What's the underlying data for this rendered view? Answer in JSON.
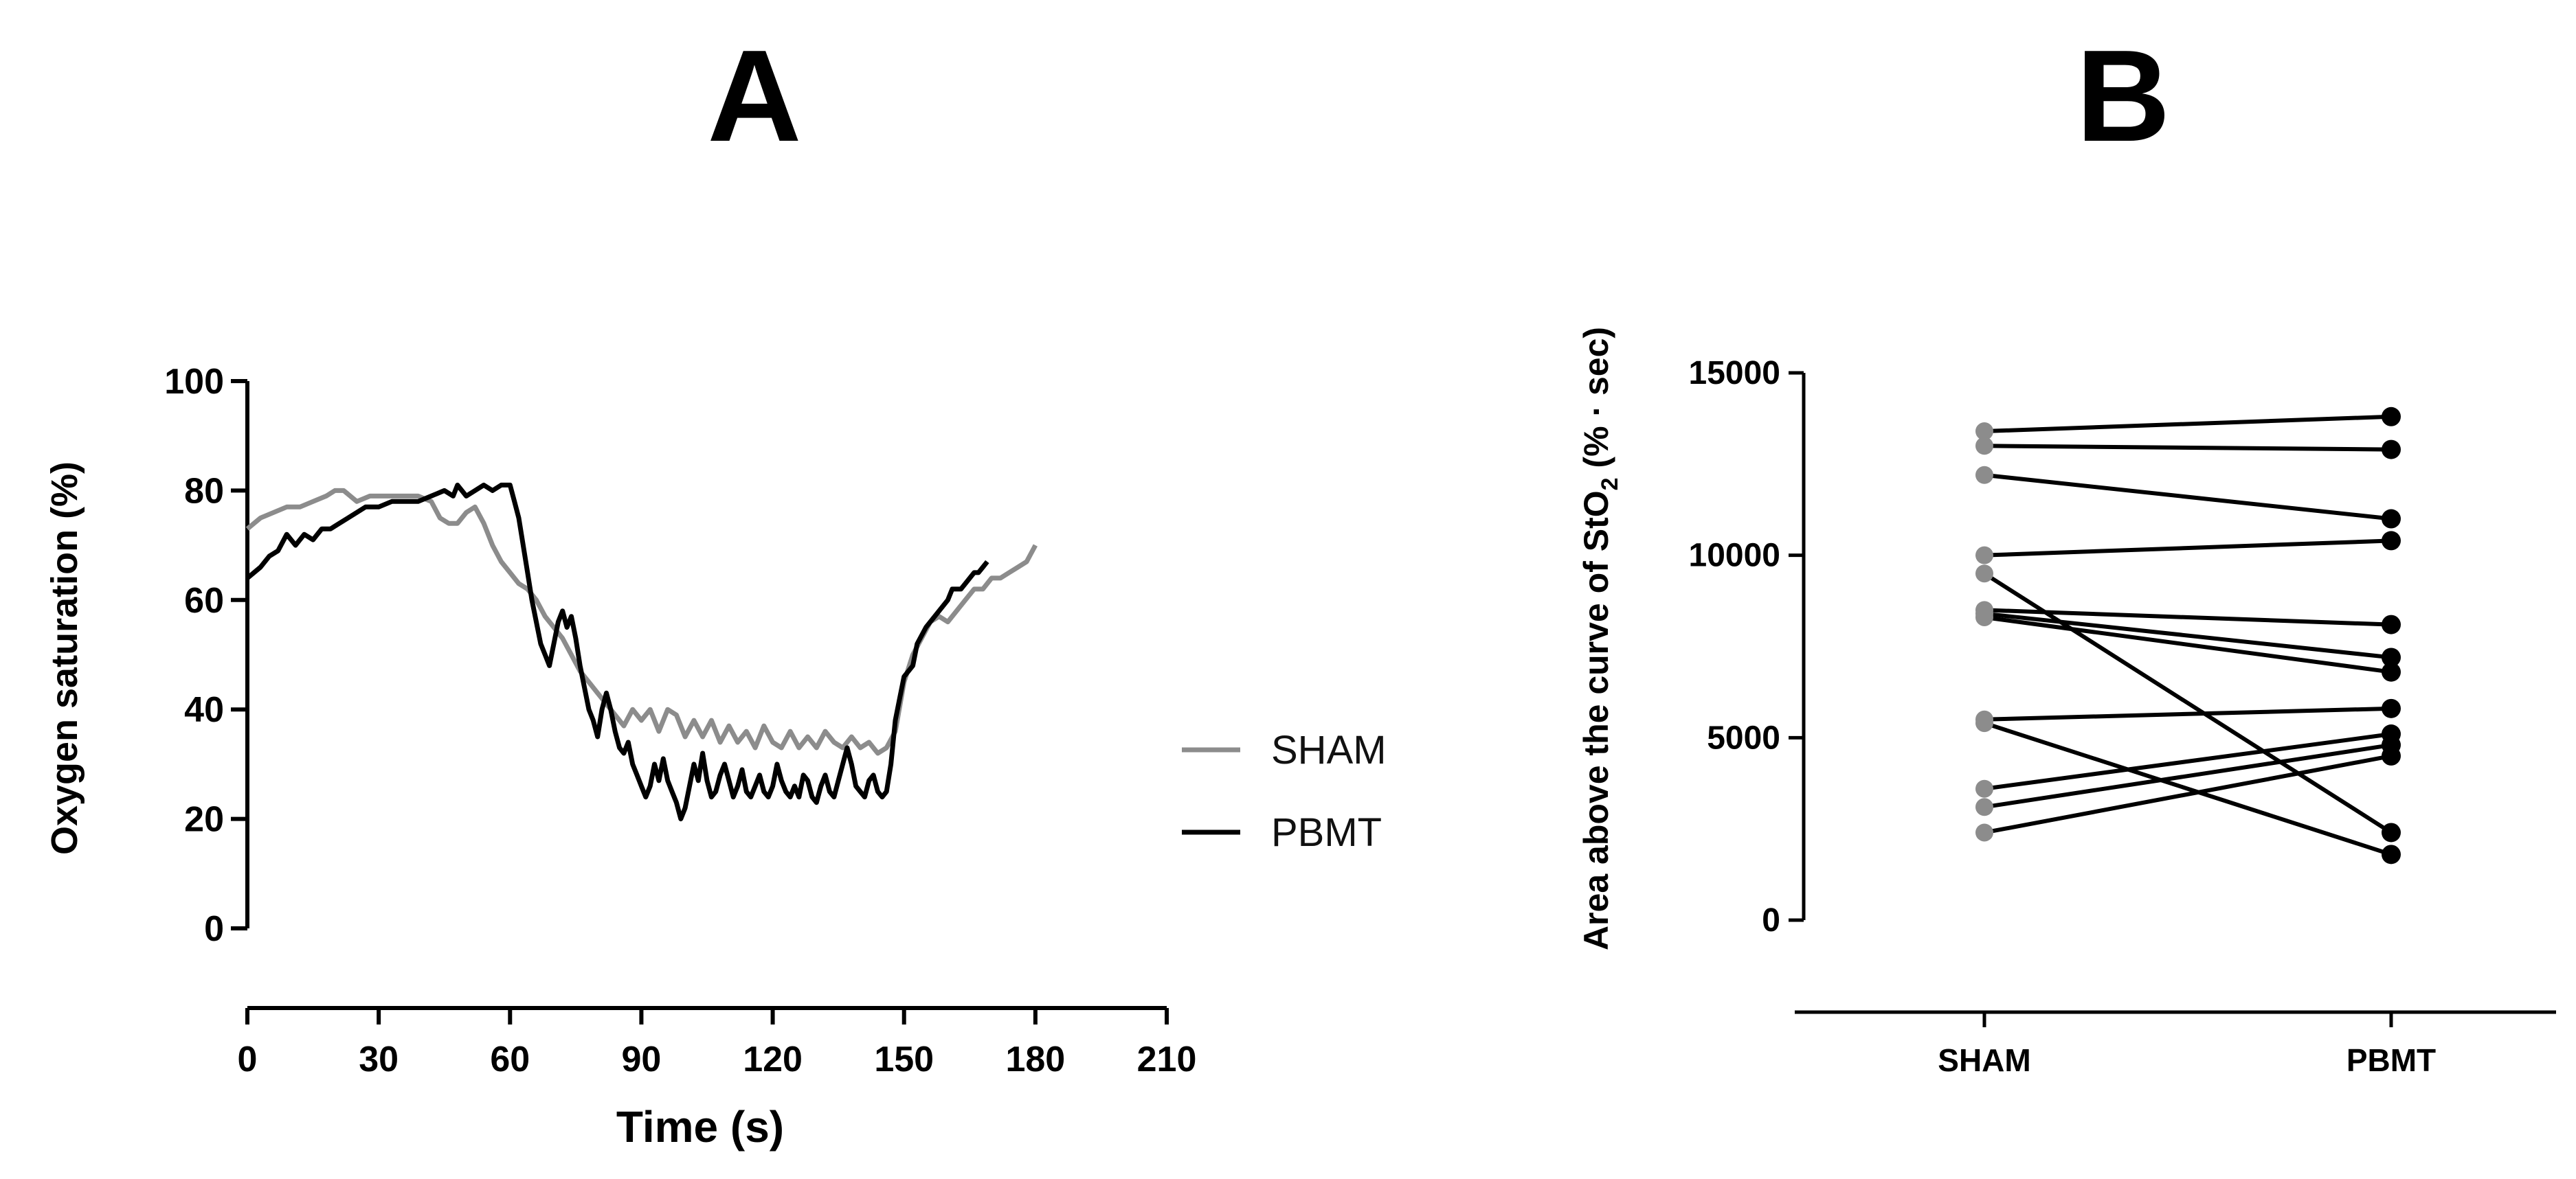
{
  "panels": [
    {
      "letter": "A"
    },
    {
      "letter": "B"
    }
  ],
  "chart_data": [
    {
      "type": "line",
      "panel": "A",
      "xlabel": "Time (s)",
      "ylabel": "Oxygen saturation (%)",
      "xlim": [
        0,
        210
      ],
      "ylim": [
        0,
        100
      ],
      "xticks": [
        0,
        30,
        60,
        90,
        120,
        150,
        180,
        210
      ],
      "yticks": [
        0,
        20,
        40,
        60,
        80,
        100
      ],
      "grid": false,
      "legend_position": "right",
      "series": [
        {
          "name": "SHAM",
          "color": "#8c8c8c",
          "points": [
            [
              0,
              73
            ],
            [
              3,
              75
            ],
            [
              6,
              76
            ],
            [
              9,
              77
            ],
            [
              12,
              77
            ],
            [
              15,
              78
            ],
            [
              18,
              79
            ],
            [
              20,
              80
            ],
            [
              22,
              80
            ],
            [
              25,
              78
            ],
            [
              28,
              79
            ],
            [
              31,
              79
            ],
            [
              35,
              79
            ],
            [
              39,
              79
            ],
            [
              42,
              78
            ],
            [
              44,
              75
            ],
            [
              46,
              74
            ],
            [
              48,
              74
            ],
            [
              50,
              76
            ],
            [
              52,
              77
            ],
            [
              54,
              74
            ],
            [
              56,
              70
            ],
            [
              58,
              67
            ],
            [
              60,
              65
            ],
            [
              62,
              63
            ],
            [
              64,
              62
            ],
            [
              66,
              60
            ],
            [
              68,
              57
            ],
            [
              70,
              55
            ],
            [
              72,
              53
            ],
            [
              74,
              50
            ],
            [
              76,
              47
            ],
            [
              78,
              45
            ],
            [
              80,
              43
            ],
            [
              82,
              41
            ],
            [
              84,
              39
            ],
            [
              86,
              37
            ],
            [
              88,
              40
            ],
            [
              90,
              38
            ],
            [
              92,
              40
            ],
            [
              94,
              36
            ],
            [
              96,
              40
            ],
            [
              98,
              39
            ],
            [
              100,
              35
            ],
            [
              102,
              38
            ],
            [
              104,
              35
            ],
            [
              106,
              38
            ],
            [
              108,
              34
            ],
            [
              110,
              37
            ],
            [
              112,
              34
            ],
            [
              114,
              36
            ],
            [
              116,
              33
            ],
            [
              118,
              37
            ],
            [
              120,
              34
            ],
            [
              122,
              33
            ],
            [
              124,
              36
            ],
            [
              126,
              33
            ],
            [
              128,
              35
            ],
            [
              130,
              33
            ],
            [
              132,
              36
            ],
            [
              134,
              34
            ],
            [
              136,
              33
            ],
            [
              138,
              35
            ],
            [
              140,
              33
            ],
            [
              142,
              34
            ],
            [
              144,
              32
            ],
            [
              146,
              33
            ],
            [
              148,
              36
            ],
            [
              150,
              45
            ],
            [
              152,
              50
            ],
            [
              154,
              53
            ],
            [
              156,
              56
            ],
            [
              158,
              57
            ],
            [
              160,
              56
            ],
            [
              162,
              58
            ],
            [
              164,
              60
            ],
            [
              166,
              62
            ],
            [
              168,
              62
            ],
            [
              170,
              64
            ],
            [
              172,
              64
            ],
            [
              174,
              65
            ],
            [
              176,
              66
            ],
            [
              178,
              67
            ],
            [
              180,
              70
            ]
          ]
        },
        {
          "name": "PBMT",
          "color": "#000000",
          "points": [
            [
              0,
              64
            ],
            [
              3,
              66
            ],
            [
              5,
              68
            ],
            [
              7,
              69
            ],
            [
              9,
              72
            ],
            [
              11,
              70
            ],
            [
              13,
              72
            ],
            [
              15,
              71
            ],
            [
              17,
              73
            ],
            [
              19,
              73
            ],
            [
              21,
              74
            ],
            [
              23,
              75
            ],
            [
              25,
              76
            ],
            [
              27,
              77
            ],
            [
              30,
              77
            ],
            [
              33,
              78
            ],
            [
              36,
              78
            ],
            [
              39,
              78
            ],
            [
              42,
              79
            ],
            [
              45,
              80
            ],
            [
              47,
              79
            ],
            [
              48,
              81
            ],
            [
              50,
              79
            ],
            [
              52,
              80
            ],
            [
              54,
              81
            ],
            [
              56,
              80
            ],
            [
              58,
              81
            ],
            [
              60,
              81
            ],
            [
              61,
              78
            ],
            [
              62,
              75
            ],
            [
              63,
              70
            ],
            [
              64,
              65
            ],
            [
              65,
              60
            ],
            [
              66,
              56
            ],
            [
              67,
              52
            ],
            [
              68,
              50
            ],
            [
              69,
              48
            ],
            [
              70,
              52
            ],
            [
              71,
              56
            ],
            [
              72,
              58
            ],
            [
              73,
              55
            ],
            [
              74,
              57
            ],
            [
              75,
              53
            ],
            [
              76,
              48
            ],
            [
              77,
              44
            ],
            [
              78,
              40
            ],
            [
              79,
              38
            ],
            [
              80,
              35
            ],
            [
              81,
              40
            ],
            [
              82,
              43
            ],
            [
              83,
              40
            ],
            [
              84,
              36
            ],
            [
              85,
              33
            ],
            [
              86,
              32
            ],
            [
              87,
              34
            ],
            [
              88,
              30
            ],
            [
              89,
              28
            ],
            [
              90,
              26
            ],
            [
              91,
              24
            ],
            [
              92,
              26
            ],
            [
              93,
              30
            ],
            [
              94,
              27
            ],
            [
              95,
              31
            ],
            [
              96,
              27
            ],
            [
              97,
              25
            ],
            [
              98,
              23
            ],
            [
              99,
              20
            ],
            [
              100,
              22
            ],
            [
              101,
              26
            ],
            [
              102,
              30
            ],
            [
              103,
              27
            ],
            [
              104,
              32
            ],
            [
              105,
              27
            ],
            [
              106,
              24
            ],
            [
              107,
              25
            ],
            [
              108,
              28
            ],
            [
              109,
              30
            ],
            [
              110,
              27
            ],
            [
              111,
              24
            ],
            [
              112,
              26
            ],
            [
              113,
              29
            ],
            [
              114,
              25
            ],
            [
              115,
              24
            ],
            [
              116,
              26
            ],
            [
              117,
              28
            ],
            [
              118,
              25
            ],
            [
              119,
              24
            ],
            [
              120,
              26
            ],
            [
              121,
              30
            ],
            [
              122,
              27
            ],
            [
              123,
              25
            ],
            [
              124,
              24
            ],
            [
              125,
              26
            ],
            [
              126,
              24
            ],
            [
              127,
              28
            ],
            [
              128,
              27
            ],
            [
              129,
              24
            ],
            [
              130,
              23
            ],
            [
              131,
              26
            ],
            [
              132,
              28
            ],
            [
              133,
              25
            ],
            [
              134,
              24
            ],
            [
              135,
              27
            ],
            [
              136,
              30
            ],
            [
              137,
              33
            ],
            [
              138,
              30
            ],
            [
              139,
              26
            ],
            [
              140,
              25
            ],
            [
              141,
              24
            ],
            [
              142,
              27
            ],
            [
              143,
              28
            ],
            [
              144,
              25
            ],
            [
              145,
              24
            ],
            [
              146,
              25
            ],
            [
              147,
              30
            ],
            [
              148,
              38
            ],
            [
              149,
              42
            ],
            [
              150,
              46
            ],
            [
              152,
              48
            ],
            [
              153,
              52
            ],
            [
              155,
              55
            ],
            [
              157,
              57
            ],
            [
              158,
              58
            ],
            [
              160,
              60
            ],
            [
              161,
              62
            ],
            [
              163,
              62
            ],
            [
              164,
              63
            ],
            [
              165,
              64
            ],
            [
              166,
              65
            ],
            [
              167,
              65
            ],
            [
              168,
              66
            ],
            [
              169,
              67
            ]
          ]
        }
      ]
    },
    {
      "type": "scatter",
      "subtype": "paired",
      "panel": "B",
      "categories": [
        "SHAM",
        "PBMT"
      ],
      "ylabel": "Area above the curve of StO2 (% · sec)",
      "ylabel_parts": {
        "before": "Area above the curve of StO",
        "subscript": "2",
        "after": " (% · sec)"
      },
      "ylim": [
        0,
        15000
      ],
      "yticks": [
        0,
        5000,
        10000,
        15000
      ],
      "grid": false,
      "colors": {
        "SHAM": "#8c8c8c",
        "PBMT": "#000000",
        "connector": "#000000"
      },
      "pairs": [
        [
          13400,
          13800
        ],
        [
          13000,
          12900
        ],
        [
          12200,
          11000
        ],
        [
          10000,
          10400
        ],
        [
          9500,
          2400
        ],
        [
          8500,
          8100
        ],
        [
          8400,
          7200
        ],
        [
          8300,
          6800
        ],
        [
          5500,
          5800
        ],
        [
          5400,
          1800
        ],
        [
          3600,
          5100
        ],
        [
          3100,
          4800
        ],
        [
          2400,
          4500
        ]
      ]
    }
  ]
}
